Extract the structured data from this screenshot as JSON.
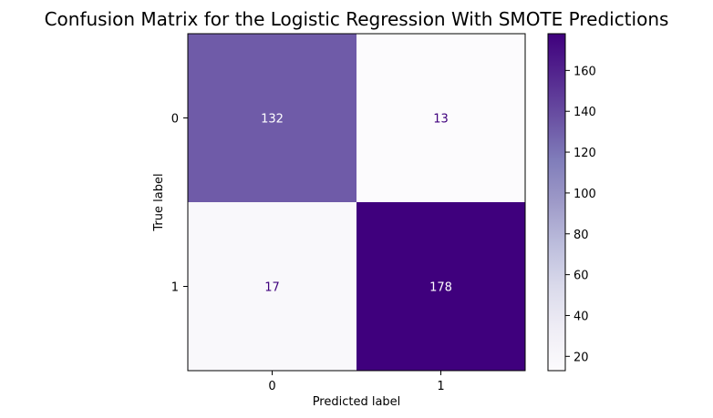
{
  "chart_data": {
    "type": "heatmap",
    "title": "Confusion Matrix for the Logistic Regression With SMOTE Predictions",
    "xlabel": "Predicted label",
    "ylabel": "True label",
    "x_categories": [
      "0",
      "1"
    ],
    "y_categories": [
      "0",
      "1"
    ],
    "matrix": [
      [
        132,
        13
      ],
      [
        17,
        178
      ]
    ],
    "colormap": "Purples",
    "colorbar": {
      "range": [
        13,
        178
      ],
      "ticks": [
        "20",
        "40",
        "60",
        "80",
        "100",
        "120",
        "140",
        "160"
      ],
      "tick_values": [
        20,
        40,
        60,
        80,
        100,
        120,
        140,
        160
      ]
    },
    "colors": {
      "low": "#fcfbfd",
      "high": "#3f007d",
      "text_on_dark": "#ffffff",
      "text_on_light": "#3f007d"
    }
  }
}
